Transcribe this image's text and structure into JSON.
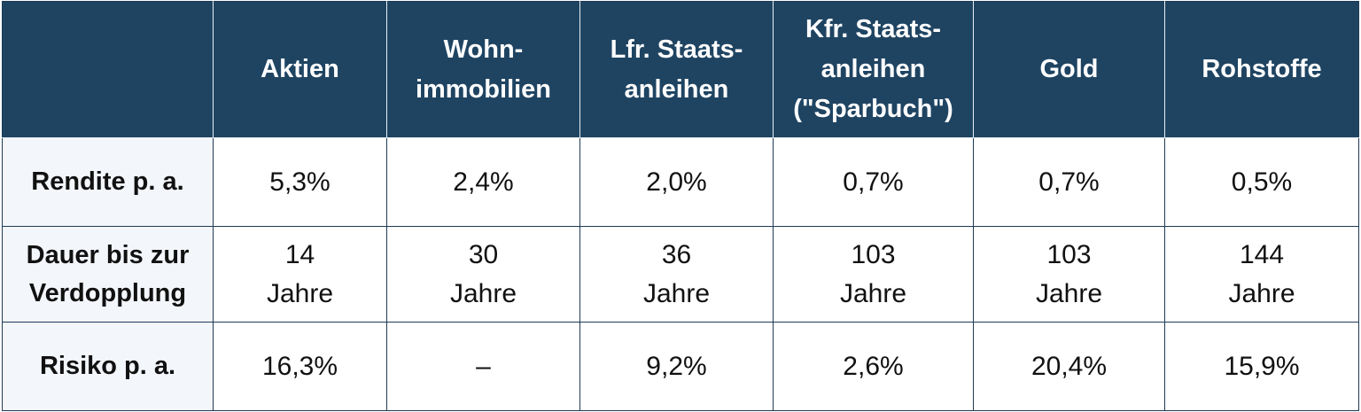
{
  "table": {
    "columns": [
      {
        "lines": [
          ""
        ]
      },
      {
        "lines": [
          "Aktien"
        ]
      },
      {
        "lines": [
          "Wohn-",
          "immobilien"
        ]
      },
      {
        "lines": [
          "Lfr. Staats-",
          "anleihen"
        ]
      },
      {
        "lines": [
          "Kfr. Staats-",
          "anleihen",
          "(\"Sparbuch\")"
        ]
      },
      {
        "lines": [
          "Gold"
        ]
      },
      {
        "lines": [
          "Rohstoffe"
        ]
      }
    ],
    "rows": [
      {
        "label": [
          "Rendite p. a."
        ],
        "cells": [
          [
            "5,3%"
          ],
          [
            "2,4%"
          ],
          [
            "2,0%"
          ],
          [
            "0,7%"
          ],
          [
            "0,7%"
          ],
          [
            "0,5%"
          ]
        ]
      },
      {
        "label": [
          "Dauer bis zur",
          "Verdopplung"
        ],
        "cells": [
          [
            "14",
            "Jahre"
          ],
          [
            "30",
            "Jahre"
          ],
          [
            "36",
            "Jahre"
          ],
          [
            "103",
            "Jahre"
          ],
          [
            "103",
            "Jahre"
          ],
          [
            "144",
            "Jahre"
          ]
        ]
      },
      {
        "label": [
          "Risiko p. a."
        ],
        "cells": [
          [
            "16,3%"
          ],
          [
            "–"
          ],
          [
            "9,2%"
          ],
          [
            "2,6%"
          ],
          [
            "20,4%"
          ],
          [
            "15,9%"
          ]
        ]
      }
    ]
  },
  "colors": {
    "header_bg": "#1f4462",
    "header_text": "#ffffff",
    "row_label_bg": "#f3f6fb",
    "border": "#1f3b56"
  }
}
